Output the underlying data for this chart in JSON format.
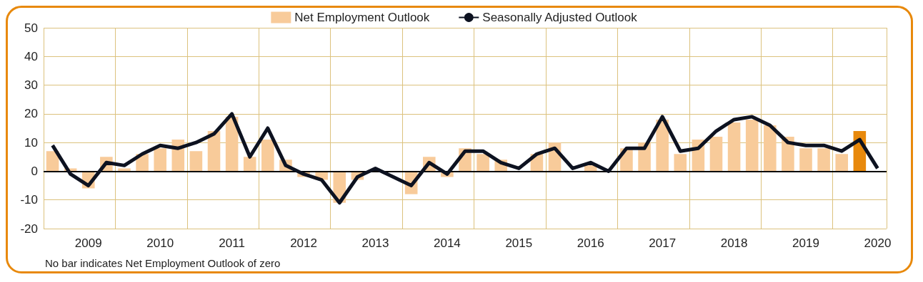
{
  "chart_data": {
    "type": "bar",
    "categories": [
      null,
      null,
      "2009",
      null,
      null,
      null,
      "2010",
      null,
      null,
      null,
      "2011",
      null,
      null,
      null,
      "2012",
      null,
      null,
      null,
      "2013",
      null,
      null,
      null,
      "2014",
      null,
      null,
      null,
      "2015",
      null,
      null,
      null,
      "2016",
      null,
      null,
      null,
      "2017",
      null,
      null,
      null,
      "2018",
      null,
      null,
      null,
      "2019",
      null,
      null,
      null,
      "2020"
    ],
    "series": [
      {
        "name": "Net Employment Outlook",
        "color": "#f8cb9a",
        "colors": [
          "#f8cb9a",
          "#f8cb9a",
          "#f8cb9a",
          "#f8cb9a",
          "#f8cb9a",
          "#f8cb9a",
          "#f8cb9a",
          "#f8cb9a",
          "#f8cb9a",
          "#f8cb9a",
          "#f8cb9a",
          "#f8cb9a",
          "#f8cb9a",
          "#f8cb9a",
          "#f8cb9a",
          "#f8cb9a",
          "#f8cb9a",
          "#f8cb9a",
          "#f8cb9a",
          "#f8cb9a",
          "#f8cb9a",
          "#f8cb9a",
          "#f8cb9a",
          "#f8cb9a",
          "#f8cb9a",
          "#f8cb9a",
          "#f8cb9a",
          "#f8cb9a",
          "#f8cb9a",
          "#f8cb9a",
          "#f8cb9a",
          "#f8cb9a",
          "#f8cb9a",
          "#f8cb9a",
          "#f8cb9a",
          "#f8cb9a",
          "#f8cb9a",
          "#f8cb9a",
          "#f8cb9a",
          "#f8cb9a",
          "#f8cb9a",
          "#f8cb9a",
          "#f8cb9a",
          "#f8cb9a",
          "#f8cb9a",
          "#e8890c",
          "#f8cb9a"
        ],
        "values": [
          7,
          1,
          -6,
          5,
          1,
          6,
          8,
          11,
          7,
          14,
          19,
          5,
          11,
          4,
          -2,
          -3,
          -11,
          -3,
          0,
          0,
          -8,
          5,
          -2,
          8,
          6,
          4,
          0,
          6,
          10,
          0,
          2,
          0,
          8,
          10,
          18,
          6,
          11,
          12,
          17,
          18,
          16,
          12,
          8,
          8,
          6,
          14,
          0
        ]
      },
      {
        "name": "Seasonally Adjusted Outlook",
        "type": "line",
        "color": "#0d1220",
        "values": [
          9,
          -1,
          -5,
          3,
          2,
          6,
          9,
          8,
          10,
          13,
          20,
          5,
          15,
          2,
          -1,
          -3,
          -11,
          -2,
          1,
          -2,
          -5,
          3,
          -1,
          7,
          7,
          3,
          1,
          6,
          8,
          1,
          3,
          0,
          8,
          8,
          19,
          7,
          8,
          14,
          18,
          19,
          16,
          10,
          9,
          9,
          7,
          11,
          1
        ]
      }
    ],
    "ylim": [
      -20,
      50
    ],
    "yticks": [
      -20,
      -10,
      0,
      10,
      20,
      30,
      40,
      50
    ],
    "ref_lines": [
      {
        "axis": "y",
        "value": 0,
        "color": "#000000"
      }
    ],
    "grid": true,
    "legend": "top",
    "marker": "none",
    "annotations": [
      "No bar indicates Net Employment Outlook of zero"
    ]
  }
}
